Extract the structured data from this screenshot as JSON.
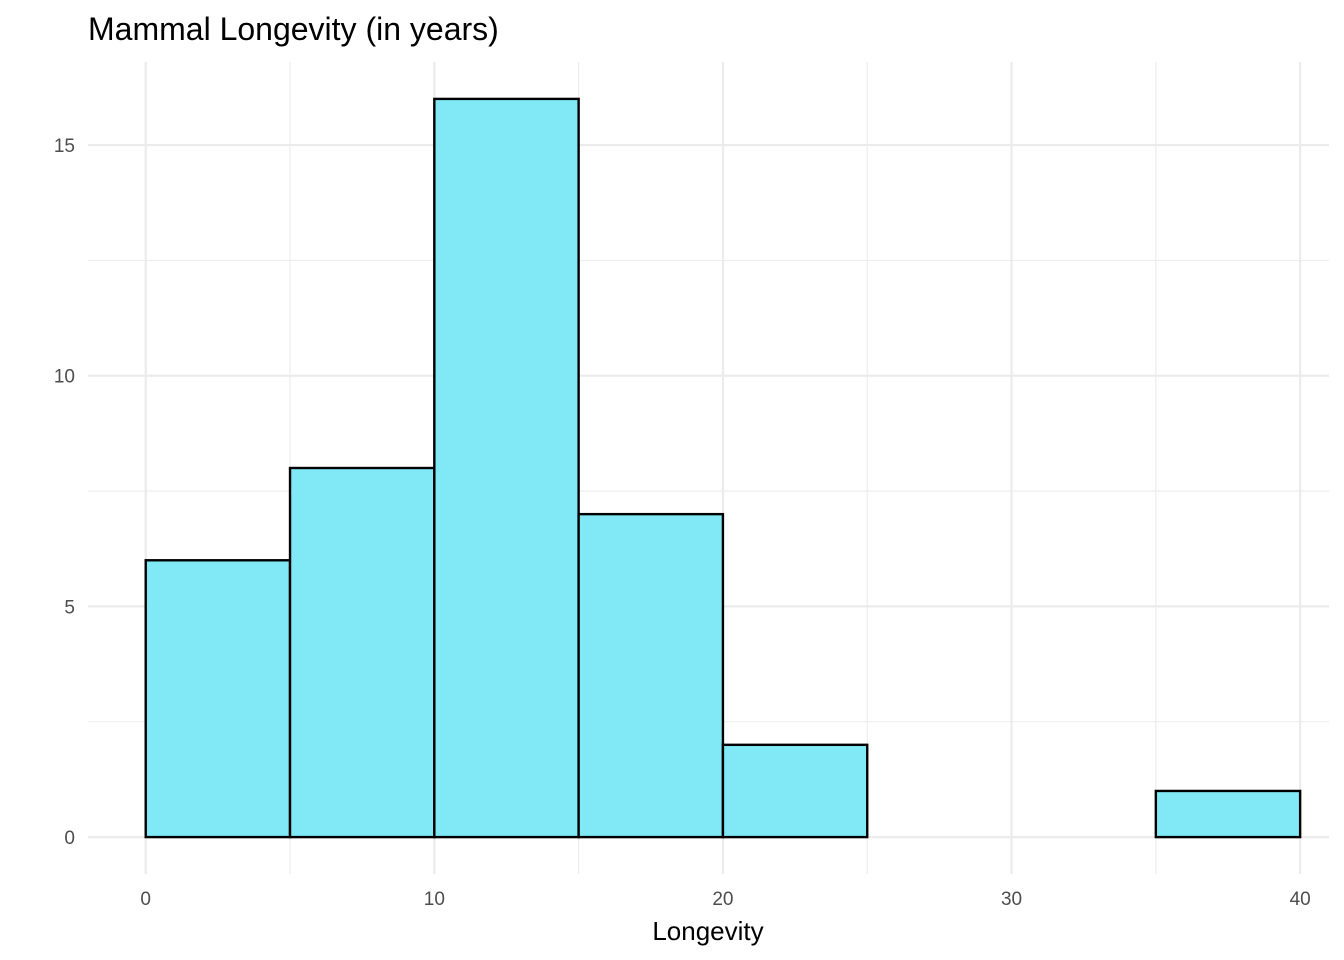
{
  "chart_data": {
    "type": "bar",
    "title": "Mammal Longevity (in years)",
    "xlabel": "Longevity",
    "ylabel": "",
    "bins": [
      {
        "x0": 0,
        "x1": 5,
        "count": 6
      },
      {
        "x0": 5,
        "x1": 10,
        "count": 8
      },
      {
        "x0": 10,
        "x1": 15,
        "count": 16
      },
      {
        "x0": 15,
        "x1": 20,
        "count": 7
      },
      {
        "x0": 20,
        "x1": 25,
        "count": 2
      },
      {
        "x0": 25,
        "x1": 30,
        "count": 0
      },
      {
        "x0": 30,
        "x1": 35,
        "count": 0
      },
      {
        "x0": 35,
        "x1": 40,
        "count": 1
      }
    ],
    "xlim": [
      -2,
      41
    ],
    "ylim": [
      -0.8,
      16.8
    ],
    "x_ticks": [
      0,
      10,
      20,
      30,
      40
    ],
    "x_minor_ticks": [
      5,
      15,
      25,
      35
    ],
    "y_ticks": [
      0,
      5,
      10,
      15
    ],
    "y_minor_ticks": [
      2.5,
      7.5,
      12.5
    ],
    "grid": true,
    "legend": "none",
    "colors": {
      "bar_fill": "#80e9f5",
      "bar_stroke": "#000000",
      "grid": "#ebebeb"
    }
  }
}
